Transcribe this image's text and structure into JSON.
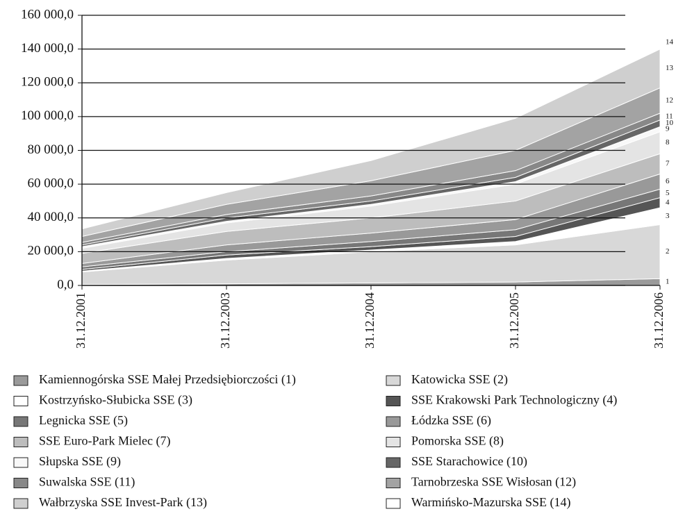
{
  "chart_data": {
    "type": "stacked_area",
    "categories": [
      "31.12.2001",
      "31.12.2003",
      "31.12.2004",
      "31.12.2005",
      "31.12.2006"
    ],
    "ylim": [
      0,
      160000
    ],
    "yticks": [
      {
        "value": 0,
        "label": "0,0"
      },
      {
        "value": 20000,
        "label": "20 000,0"
      },
      {
        "value": 40000,
        "label": "40 000,0"
      },
      {
        "value": 60000,
        "label": "60 000,0"
      },
      {
        "value": 80000,
        "label": "80 000,0"
      },
      {
        "value": 100000,
        "label": "100 000,0"
      },
      {
        "value": 120000,
        "label": "120 000,0"
      },
      {
        "value": 140000,
        "label": "140 000,0"
      },
      {
        "value": 160000,
        "label": "160 000,0"
      }
    ],
    "grid": true,
    "side_labels": [
      "1",
      "2",
      "3",
      "4",
      "5",
      "6",
      "7",
      "8",
      "9",
      "10",
      "11",
      "12",
      "13",
      "14"
    ],
    "series": [
      {
        "name": "Kamiennogórska SSE Małej Przedsiębiorczości (1)",
        "color": "#9a9a9a",
        "values": [
          500,
          1000,
          1500,
          2000,
          4000
        ]
      },
      {
        "name": "Katowicka SSE (2)",
        "color": "#d8d8d8",
        "values": [
          7500,
          14000,
          18500,
          22000,
          32000
        ]
      },
      {
        "name": "Kostrzyńsko-Słubicka SSE (3)",
        "color": "#ffffff",
        "values": [
          500,
          1000,
          1000,
          2000,
          10000
        ]
      },
      {
        "name": "SSE Krakowski Park Technologiczny (4)",
        "color": "#555555",
        "values": [
          1000,
          2000,
          2000,
          3000,
          6000
        ]
      },
      {
        "name": "Legnicka SSE (5)",
        "color": "#777777",
        "values": [
          1500,
          2000,
          3000,
          4000,
          5000
        ]
      },
      {
        "name": "Łódzka SSE (6)",
        "color": "#999999",
        "values": [
          2000,
          4000,
          5000,
          6000,
          9000
        ]
      },
      {
        "name": "SSE Euro-Park Mielec (7)",
        "color": "#bdbdbd",
        "values": [
          6000,
          8000,
          9000,
          11000,
          12000
        ]
      },
      {
        "name": "Pomorska SSE (8)",
        "color": "#e4e4e4",
        "values": [
          3000,
          5000,
          7000,
          10000,
          13000
        ]
      },
      {
        "name": "Słupska SSE (9)",
        "color": "#f8f8f8",
        "values": [
          1000,
          1000,
          1000,
          1500,
          3000
        ]
      },
      {
        "name": "SSE Starachowice (10)",
        "color": "#666666",
        "values": [
          1000,
          2000,
          2000,
          2500,
          4000
        ]
      },
      {
        "name": "Suwalska SSE (11)",
        "color": "#888888",
        "values": [
          1500,
          2000,
          3000,
          4000,
          4000
        ]
      },
      {
        "name": "Tarnobrzeska SSE Wisłosan (12)",
        "color": "#a3a3a3",
        "values": [
          3500,
          6000,
          9000,
          12000,
          15000
        ]
      },
      {
        "name": "Wałbrzyska SSE Invest-Park (13)",
        "color": "#cfcfcf",
        "values": [
          4500,
          7000,
          12000,
          19000,
          23000
        ]
      },
      {
        "name": "Warmińsko-Mazurska SSE (14)",
        "color": "#ffffff",
        "values": [
          1000,
          1000,
          1500,
          6000,
          8000
        ]
      }
    ]
  }
}
